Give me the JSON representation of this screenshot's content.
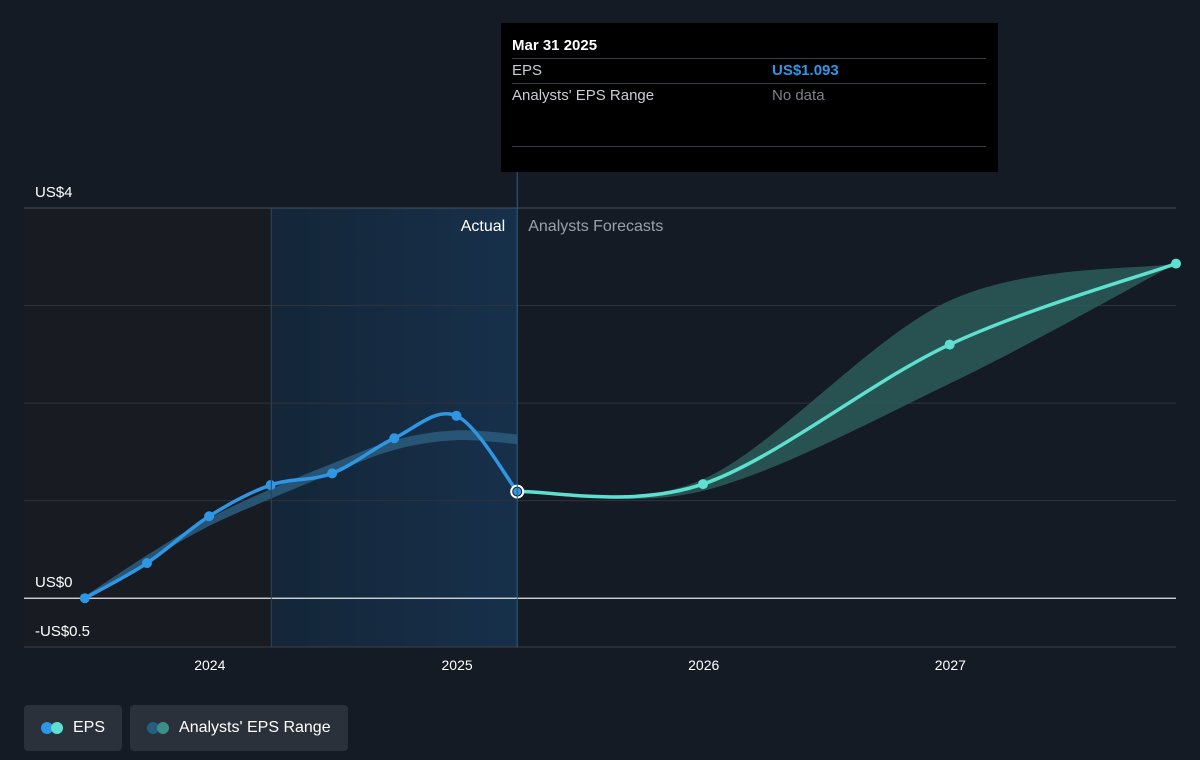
{
  "tooltip": {
    "date": "Mar 31 2025",
    "rows": [
      {
        "label": "EPS",
        "value": "US$1.093"
      },
      {
        "label": "Analysts' EPS Range",
        "value": "No data"
      }
    ]
  },
  "regions": {
    "actual_label": "Actual",
    "forecast_label": "Analysts Forecasts"
  },
  "legend": [
    {
      "label": "EPS",
      "colors": [
        "#2f96e4",
        "#5de0d0"
      ]
    },
    {
      "label": "Analysts' EPS Range",
      "colors": [
        "#245f82",
        "#3b8f86"
      ]
    }
  ],
  "colors": {
    "background": "#151b24",
    "actual_line": "#2f96e4",
    "forecast_line": "#5de0d0",
    "actual_range": "#2a5a7a",
    "forecast_range": "#2c5c5a",
    "highlight": "#17304a"
  },
  "chart_data": {
    "type": "line",
    "y_tick_labels": [
      {
        "value": 4,
        "label": "US$4"
      },
      {
        "value": 0,
        "label": "US$0"
      },
      {
        "value": -0.5,
        "label": "-US$0.5"
      }
    ],
    "ylim": [
      -0.5,
      4
    ],
    "x_ticks": [
      "2024",
      "2025",
      "2026",
      "2027"
    ],
    "xlim": [
      "2023-04-01",
      "2027-12-01"
    ],
    "grid": true,
    "highlight_period": [
      "2024-04-01",
      "2025-03-31"
    ],
    "divider_date": "2025-03-31",
    "series": [
      {
        "name": "EPS",
        "kind": "actual",
        "points": [
          {
            "x": "2023-06-30",
            "y": 0.0
          },
          {
            "x": "2023-09-30",
            "y": 0.36
          },
          {
            "x": "2023-12-31",
            "y": 0.84
          },
          {
            "x": "2024-03-31",
            "y": 1.16
          },
          {
            "x": "2024-06-30",
            "y": 1.28
          },
          {
            "x": "2024-09-30",
            "y": 1.64
          },
          {
            "x": "2024-12-31",
            "y": 1.87
          },
          {
            "x": "2025-03-31",
            "y": 1.093
          }
        ]
      },
      {
        "name": "EPS",
        "kind": "forecast",
        "points": [
          {
            "x": "2025-03-31",
            "y": 1.093
          },
          {
            "x": "2025-12-31",
            "y": 1.17
          },
          {
            "x": "2026-12-31",
            "y": 2.6
          },
          {
            "x": "2027-12-01",
            "y": 3.43
          }
        ]
      },
      {
        "name": "Analysts' EPS Range",
        "kind": "actual_range",
        "points": [
          {
            "x": "2023-06-30",
            "low": -0.02,
            "high": 0.02
          },
          {
            "x": "2023-09-30",
            "low": 0.38,
            "high": 0.44
          },
          {
            "x": "2023-12-31",
            "low": 0.74,
            "high": 0.82
          },
          {
            "x": "2024-03-31",
            "low": 1.02,
            "high": 1.12
          },
          {
            "x": "2024-06-30",
            "low": 1.28,
            "high": 1.38
          },
          {
            "x": "2024-09-30",
            "low": 1.52,
            "high": 1.62
          },
          {
            "x": "2024-12-31",
            "low": 1.62,
            "high": 1.72
          },
          {
            "x": "2025-03-31",
            "low": 1.58,
            "high": 1.68
          }
        ]
      },
      {
        "name": "Analysts' EPS Range",
        "kind": "forecast_range",
        "points": [
          {
            "x": "2025-03-31",
            "low": 1.093,
            "high": 1.093
          },
          {
            "x": "2025-12-31",
            "low": 1.1,
            "high": 1.22
          },
          {
            "x": "2026-12-31",
            "low": 2.2,
            "high": 3.05
          },
          {
            "x": "2027-12-01",
            "low": 3.43,
            "high": 3.43
          }
        ]
      }
    ]
  }
}
